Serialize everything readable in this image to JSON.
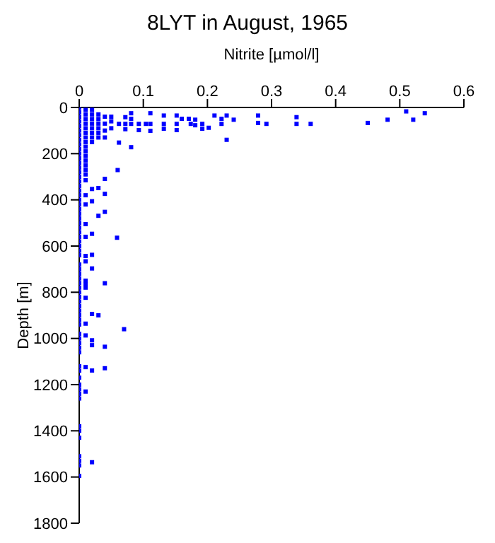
{
  "chart_data": {
    "type": "scatter",
    "title": "8LYT in August, 1965",
    "xlabel": "Nitrite [µmol/l]",
    "ylabel": "Depth [m]",
    "xlim": [
      0,
      0.6
    ],
    "xticks": [
      0,
      0.1,
      0.2,
      0.3,
      0.4,
      0.5,
      0.6
    ],
    "ylim": [
      1800,
      0
    ],
    "yticks": [
      0,
      200,
      400,
      600,
      800,
      1000,
      1200,
      1400,
      1600,
      1800
    ],
    "marker": "square",
    "series": [
      {
        "color": "#0000ff",
        "x": [
          0,
          0,
          0,
          0,
          0,
          0,
          0,
          0,
          0,
          0,
          0,
          0,
          0,
          0,
          0,
          0,
          0,
          0,
          0,
          0,
          0,
          0,
          0,
          0,
          0,
          0,
          0,
          0,
          0,
          0,
          0,
          0,
          0,
          0,
          0,
          0,
          0,
          0,
          0,
          0,
          0,
          0,
          0,
          0,
          0,
          0,
          0,
          0,
          0,
          0,
          0,
          0,
          0,
          0,
          0,
          0,
          0,
          0,
          0,
          0,
          0,
          0,
          0,
          0,
          0,
          0,
          0.01,
          0.01,
          0.01,
          0.01,
          0.01,
          0.01,
          0.01,
          0.01,
          0.01,
          0.01,
          0.01,
          0.01,
          0.01,
          0.01,
          0.01,
          0.01,
          0.01,
          0.01,
          0.01,
          0.01,
          0.01,
          0.01,
          0.01,
          0.01,
          0.01,
          0.01,
          0.01,
          0.01,
          0.01,
          0.01,
          0.02,
          0.02,
          0.02,
          0.02,
          0.02,
          0.02,
          0.02,
          0.02,
          0.02,
          0.02,
          0.02,
          0.02,
          0.02,
          0.02,
          0.02,
          0.02,
          0.02,
          0.02,
          0.03,
          0.03,
          0.03,
          0.03,
          0.03,
          0.03,
          0.03,
          0.03,
          0.03,
          0.04,
          0.04,
          0.04,
          0.04,
          0.04,
          0.04,
          0.04,
          0.04,
          0.04,
          0.04,
          0.05,
          0.05,
          0.05,
          0.06,
          0.062,
          0.062,
          0.059,
          0.07,
          0.072,
          0.072,
          0.072,
          0.081,
          0.081,
          0.081,
          0.081,
          0.093,
          0.093,
          0.104,
          0.111,
          0.111,
          0.111,
          0.132,
          0.132,
          0.132,
          0.152,
          0.152,
          0.152,
          0.16,
          0.171,
          0.174,
          0.181,
          0.181,
          0.192,
          0.192,
          0.202,
          0.211,
          0.222,
          0.222,
          0.23,
          0.23,
          0.241,
          0.279,
          0.279,
          0.292,
          0.339,
          0.339,
          0.361,
          0.45,
          0.481,
          0.51,
          0.521,
          0.539
        ],
        "values": [
          0,
          20,
          40,
          60,
          80,
          100,
          120,
          140,
          160,
          180,
          200,
          220,
          240,
          260,
          280,
          300,
          320,
          340,
          360,
          380,
          400,
          420,
          440,
          460,
          480,
          500,
          520,
          540,
          560,
          580,
          600,
          620,
          640,
          680,
          700,
          720,
          740,
          760,
          780,
          800,
          820,
          840,
          860,
          880,
          900,
          920,
          940,
          980,
          1000,
          1020,
          1040,
          1060,
          1120,
          1140,
          1170,
          1200,
          1220,
          1240,
          1260,
          1380,
          1400,
          1430,
          1510,
          1530,
          1550,
          1595,
          10,
          30,
          50,
          70,
          90,
          110,
          130,
          150,
          170,
          190,
          210,
          230,
          250,
          270,
          290,
          315,
          380,
          420,
          505,
          560,
          643,
          666,
          750,
          765,
          780,
          824,
          936,
          987,
          1124,
          1230,
          10,
          30,
          50,
          70,
          90,
          110,
          130,
          150,
          353,
          406,
          547,
          638,
          697,
          894,
          1008,
          1029,
          1139,
          1536,
          30,
          50,
          70,
          90,
          110,
          130,
          349,
          469,
          900,
          40,
          70,
          100,
          130,
          309,
          374,
          452,
          761,
          1036,
          1129,
          40,
          60,
          90,
          271,
          71,
          152,
          564,
          960,
          42,
          71,
          94,
          25,
          49,
          71,
          172,
          71,
          98,
          71,
          25,
          71,
          101,
          35,
          71,
          92,
          35,
          71,
          98,
          49,
          49,
          71,
          53,
          77,
          71,
          92,
          88,
          35,
          49,
          71,
          35,
          140,
          53,
          35,
          67,
          71,
          42,
          71,
          71,
          67,
          53,
          17,
          53,
          25
        ]
      }
    ]
  }
}
